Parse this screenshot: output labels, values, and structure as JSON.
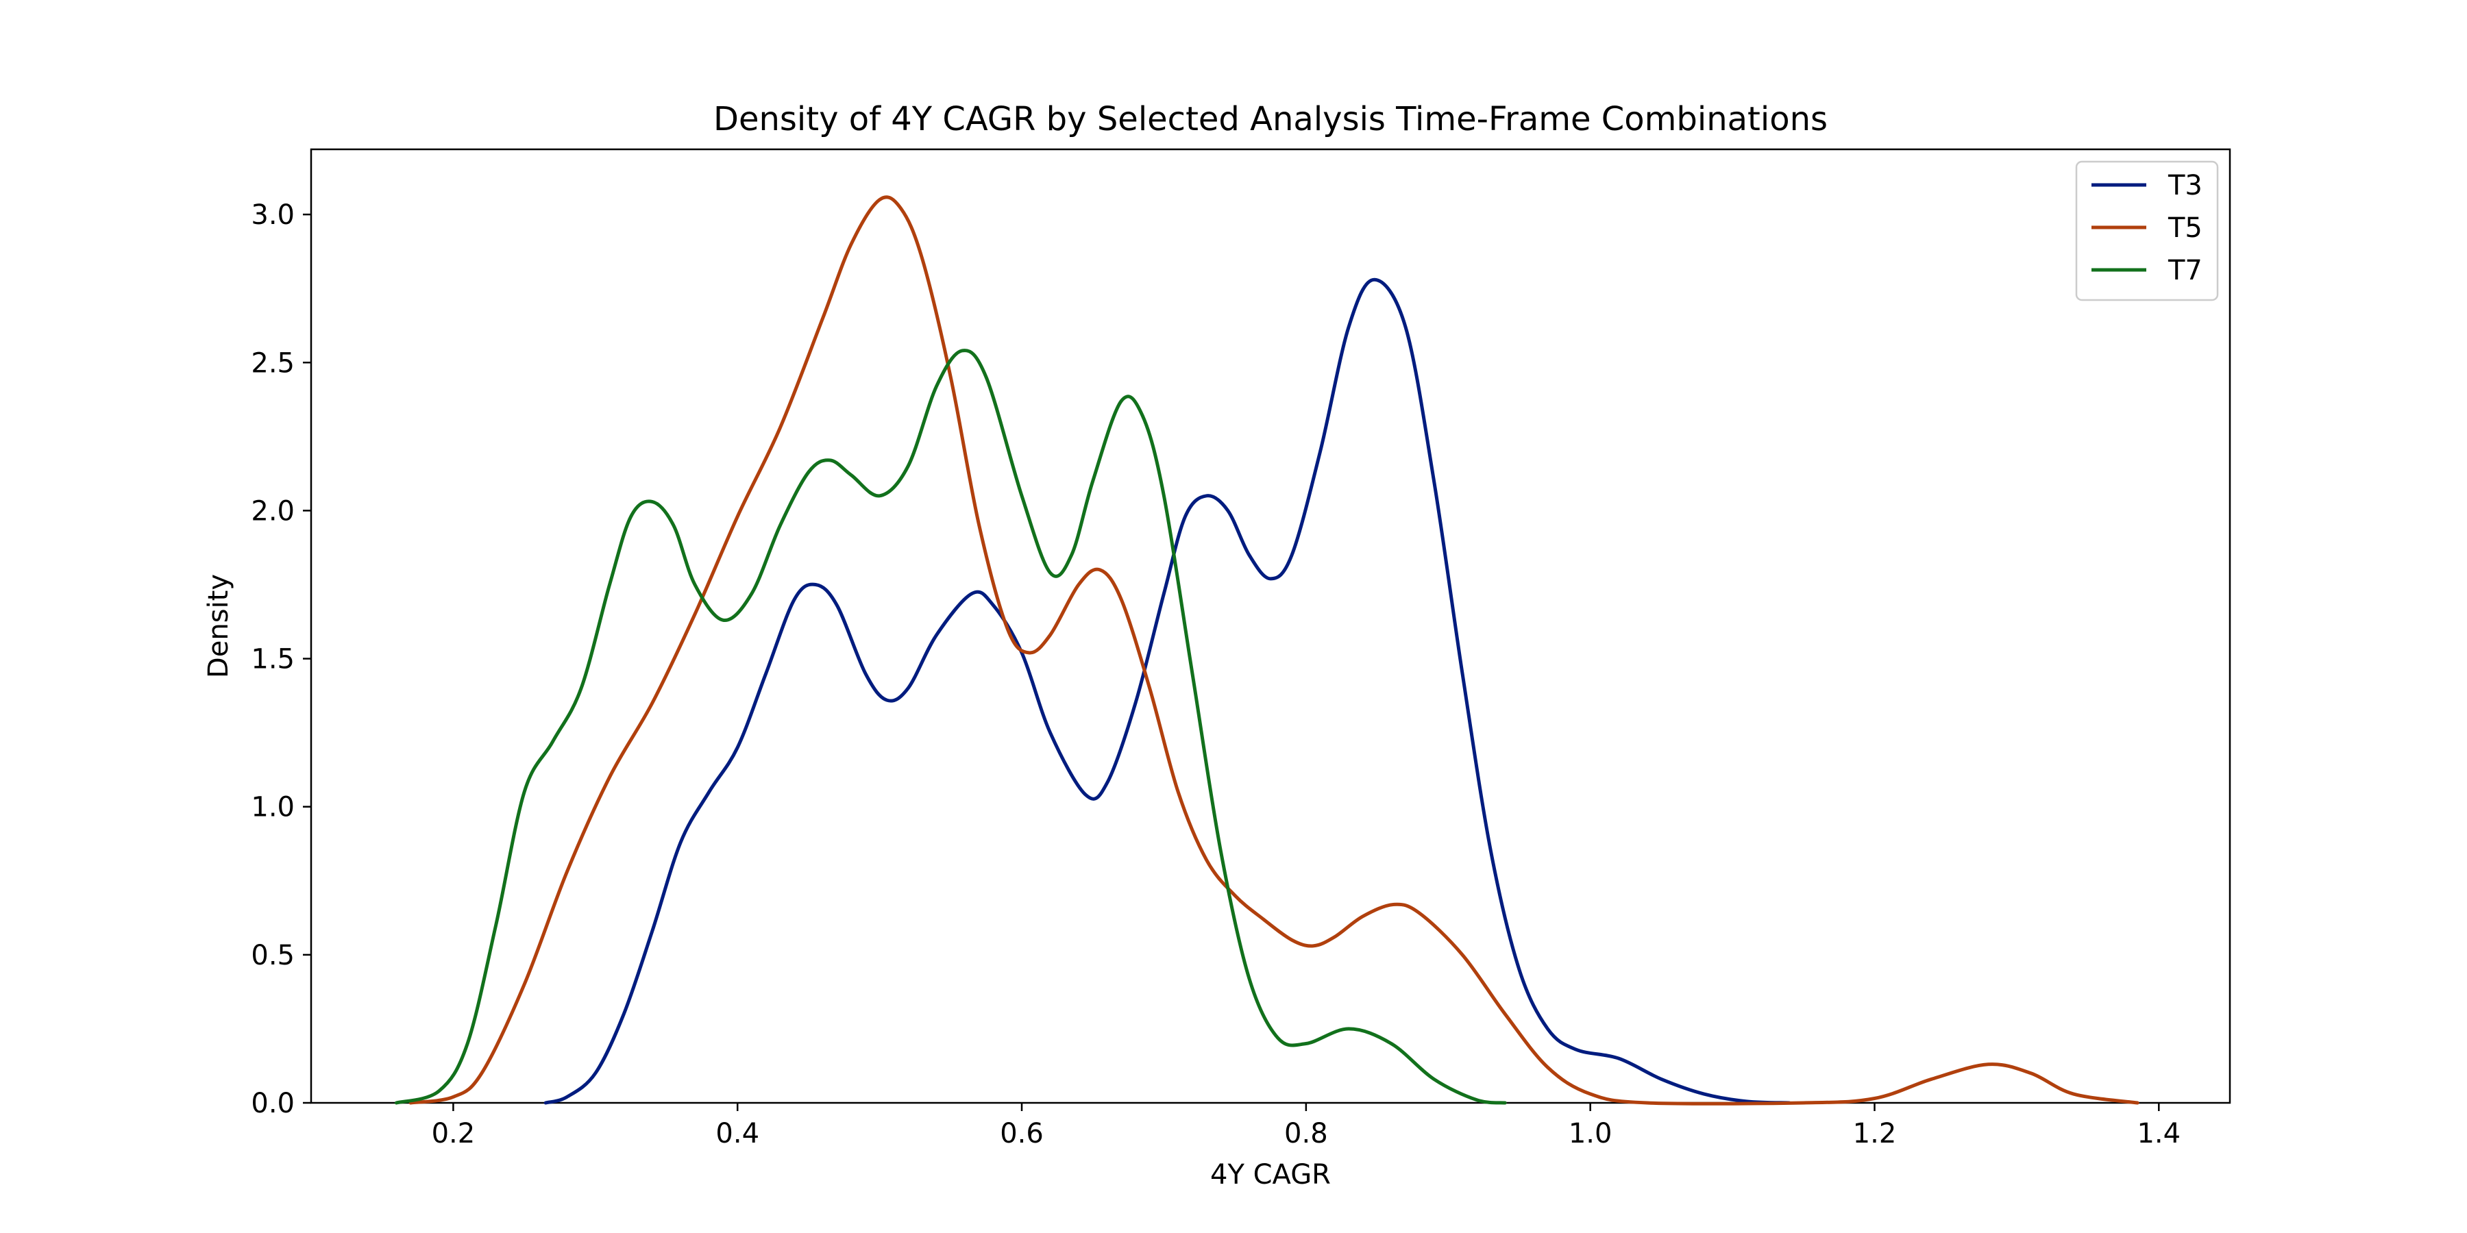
{
  "chart_data": {
    "type": "line",
    "title": "Density of 4Y CAGR by Selected Analysis Time-Frame Combinations",
    "xlabel": "4Y CAGR",
    "ylabel": "Density",
    "xlim": [
      0.1,
      1.45
    ],
    "ylim": [
      0,
      3.22
    ],
    "xticks": [
      0.2,
      0.4,
      0.6,
      0.8,
      1.0,
      1.2,
      1.4
    ],
    "xtick_labels": [
      "0.2",
      "0.4",
      "0.6",
      "0.8",
      "1.0",
      "1.2",
      "1.4"
    ],
    "yticks": [
      0.0,
      0.5,
      1.0,
      1.5,
      2.0,
      2.5,
      3.0
    ],
    "ytick_labels": [
      "0.0",
      "0.5",
      "1.0",
      "1.5",
      "2.0",
      "2.5",
      "3.0"
    ],
    "grid": false,
    "legend_position": "top-right",
    "series": [
      {
        "name": "T3",
        "color": "#001c7f",
        "points": [
          [
            0.265,
            0.0
          ],
          [
            0.28,
            0.02
          ],
          [
            0.3,
            0.1
          ],
          [
            0.32,
            0.3
          ],
          [
            0.34,
            0.58
          ],
          [
            0.36,
            0.88
          ],
          [
            0.38,
            1.05
          ],
          [
            0.4,
            1.2
          ],
          [
            0.42,
            1.45
          ],
          [
            0.44,
            1.7
          ],
          [
            0.455,
            1.75
          ],
          [
            0.47,
            1.68
          ],
          [
            0.49,
            1.45
          ],
          [
            0.505,
            1.36
          ],
          [
            0.52,
            1.4
          ],
          [
            0.54,
            1.58
          ],
          [
            0.565,
            1.72
          ],
          [
            0.58,
            1.68
          ],
          [
            0.6,
            1.52
          ],
          [
            0.62,
            1.25
          ],
          [
            0.645,
            1.04
          ],
          [
            0.66,
            1.08
          ],
          [
            0.68,
            1.35
          ],
          [
            0.7,
            1.72
          ],
          [
            0.715,
            1.98
          ],
          [
            0.73,
            2.05
          ],
          [
            0.745,
            2.0
          ],
          [
            0.76,
            1.85
          ],
          [
            0.775,
            1.77
          ],
          [
            0.79,
            1.85
          ],
          [
            0.81,
            2.2
          ],
          [
            0.83,
            2.62
          ],
          [
            0.848,
            2.78
          ],
          [
            0.87,
            2.62
          ],
          [
            0.89,
            2.1
          ],
          [
            0.91,
            1.45
          ],
          [
            0.93,
            0.85
          ],
          [
            0.95,
            0.45
          ],
          [
            0.97,
            0.25
          ],
          [
            0.99,
            0.18
          ],
          [
            1.02,
            0.15
          ],
          [
            1.05,
            0.08
          ],
          [
            1.08,
            0.03
          ],
          [
            1.11,
            0.005
          ],
          [
            1.14,
            0.0
          ]
        ]
      },
      {
        "name": "T5",
        "color": "#b1400d",
        "points": [
          [
            0.17,
            0.0
          ],
          [
            0.2,
            0.02
          ],
          [
            0.22,
            0.1
          ],
          [
            0.25,
            0.4
          ],
          [
            0.28,
            0.78
          ],
          [
            0.31,
            1.1
          ],
          [
            0.34,
            1.35
          ],
          [
            0.37,
            1.65
          ],
          [
            0.4,
            1.98
          ],
          [
            0.43,
            2.28
          ],
          [
            0.46,
            2.65
          ],
          [
            0.48,
            2.9
          ],
          [
            0.5,
            3.05
          ],
          [
            0.515,
            3.02
          ],
          [
            0.53,
            2.85
          ],
          [
            0.55,
            2.45
          ],
          [
            0.57,
            1.95
          ],
          [
            0.59,
            1.6
          ],
          [
            0.605,
            1.52
          ],
          [
            0.62,
            1.58
          ],
          [
            0.64,
            1.75
          ],
          [
            0.655,
            1.8
          ],
          [
            0.67,
            1.7
          ],
          [
            0.69,
            1.4
          ],
          [
            0.71,
            1.05
          ],
          [
            0.73,
            0.82
          ],
          [
            0.75,
            0.7
          ],
          [
            0.77,
            0.62
          ],
          [
            0.79,
            0.55
          ],
          [
            0.805,
            0.53
          ],
          [
            0.82,
            0.56
          ],
          [
            0.84,
            0.63
          ],
          [
            0.862,
            0.67
          ],
          [
            0.88,
            0.64
          ],
          [
            0.91,
            0.5
          ],
          [
            0.94,
            0.3
          ],
          [
            0.97,
            0.12
          ],
          [
            1.0,
            0.03
          ],
          [
            1.04,
            0.0
          ],
          [
            1.15,
            0.0
          ],
          [
            1.2,
            0.015
          ],
          [
            1.24,
            0.08
          ],
          [
            1.28,
            0.13
          ],
          [
            1.31,
            0.1
          ],
          [
            1.34,
            0.03
          ],
          [
            1.385,
            0.0
          ]
        ]
      },
      {
        "name": "T7",
        "color": "#12711c",
        "points": [
          [
            0.16,
            0.0
          ],
          [
            0.19,
            0.04
          ],
          [
            0.21,
            0.2
          ],
          [
            0.23,
            0.6
          ],
          [
            0.25,
            1.05
          ],
          [
            0.27,
            1.22
          ],
          [
            0.29,
            1.4
          ],
          [
            0.31,
            1.75
          ],
          [
            0.325,
            1.98
          ],
          [
            0.34,
            2.03
          ],
          [
            0.355,
            1.95
          ],
          [
            0.37,
            1.75
          ],
          [
            0.39,
            1.63
          ],
          [
            0.41,
            1.72
          ],
          [
            0.43,
            1.95
          ],
          [
            0.45,
            2.13
          ],
          [
            0.465,
            2.17
          ],
          [
            0.48,
            2.12
          ],
          [
            0.5,
            2.05
          ],
          [
            0.52,
            2.15
          ],
          [
            0.54,
            2.42
          ],
          [
            0.558,
            2.54
          ],
          [
            0.575,
            2.45
          ],
          [
            0.6,
            2.05
          ],
          [
            0.62,
            1.79
          ],
          [
            0.635,
            1.85
          ],
          [
            0.65,
            2.1
          ],
          [
            0.67,
            2.37
          ],
          [
            0.685,
            2.32
          ],
          [
            0.7,
            2.05
          ],
          [
            0.72,
            1.45
          ],
          [
            0.74,
            0.85
          ],
          [
            0.76,
            0.42
          ],
          [
            0.78,
            0.22
          ],
          [
            0.8,
            0.2
          ],
          [
            0.83,
            0.25
          ],
          [
            0.86,
            0.2
          ],
          [
            0.89,
            0.08
          ],
          [
            0.92,
            0.01
          ],
          [
            0.94,
            0.0
          ]
        ]
      }
    ]
  }
}
